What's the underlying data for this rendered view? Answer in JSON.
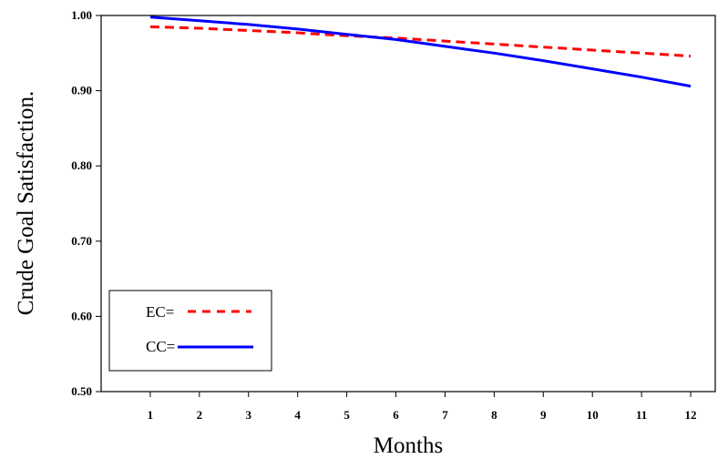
{
  "chart_data": {
    "type": "line",
    "xlabel": "Months",
    "ylabel": "Crude Goal Satisfaction.",
    "x": [
      1,
      2,
      3,
      4,
      5,
      6,
      7,
      8,
      9,
      10,
      11,
      12
    ],
    "x_tick_labels": [
      "1",
      "2",
      "3",
      "4",
      "5",
      "6",
      "7",
      "8",
      "9",
      "10",
      "11",
      "12"
    ],
    "y_tick_labels": [
      "0.50",
      "0.60",
      "0.70",
      "0.80",
      "0.90",
      "1.00"
    ],
    "y_ticks": [
      0.5,
      0.6,
      0.7,
      0.8,
      0.9,
      1.0
    ],
    "xlim": [
      0,
      12.5
    ],
    "ylim": [
      0.5,
      1.0
    ],
    "grid": false,
    "legend_position": "bottom-left",
    "series": [
      {
        "name": "EC=",
        "color": "#ff0000",
        "style": "dashed",
        "values": [
          0.985,
          0.983,
          0.98,
          0.977,
          0.973,
          0.97,
          0.966,
          0.962,
          0.958,
          0.954,
          0.95,
          0.946
        ]
      },
      {
        "name": "CC=",
        "color": "#0000ff",
        "style": "solid",
        "values": [
          0.998,
          0.993,
          0.988,
          0.982,
          0.975,
          0.968,
          0.959,
          0.95,
          0.94,
          0.929,
          0.918,
          0.906
        ]
      }
    ]
  }
}
